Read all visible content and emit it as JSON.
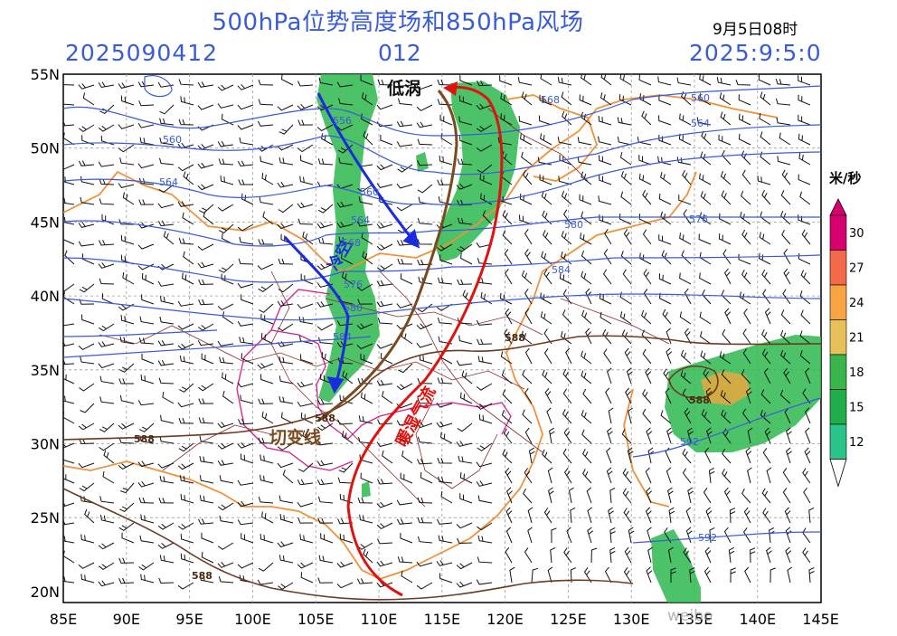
{
  "title": "500hPa位势高度场和850hPa风场",
  "init_time": "2025090412",
  "forecast_hour": "012",
  "valid_date": "2025:9:5:0",
  "valid_time_label": "9月5日08时",
  "lat_labels": [
    "55N",
    "50N",
    "45N",
    "40N",
    "35N",
    "30N",
    "25N",
    "20N"
  ],
  "lon_labels": [
    "85E",
    "90E",
    "95E",
    "100E",
    "105E",
    "110E",
    "115E",
    "120E",
    "125E",
    "130E",
    "135E",
    "140E",
    "145E"
  ],
  "contour_labels_blue": [
    "560",
    "564",
    "556",
    "560",
    "564",
    "568",
    "576",
    "580",
    "584",
    "560",
    "564",
    "568",
    "576",
    "580",
    "584"
  ],
  "contour_labels_brown": [
    "588",
    "588",
    "588",
    "588",
    "588"
  ],
  "contour_labels_blue_east": [
    "592",
    "592"
  ],
  "annotations": {
    "low_vortex": "低涡",
    "shear_line": "切变线",
    "cold_air": "冷空",
    "warm_moist_flow": "暖湿气流"
  },
  "colorbar": {
    "unit": "米/秒",
    "ticks": [
      "30",
      "27",
      "24",
      "21",
      "18",
      "15",
      "12"
    ],
    "colors": [
      "#d6006e",
      "#f26a4a",
      "#f7a542",
      "#e6c15a",
      "#39b54a",
      "#1fae4a",
      "#28c48a"
    ]
  },
  "watermark": "weibo"
}
